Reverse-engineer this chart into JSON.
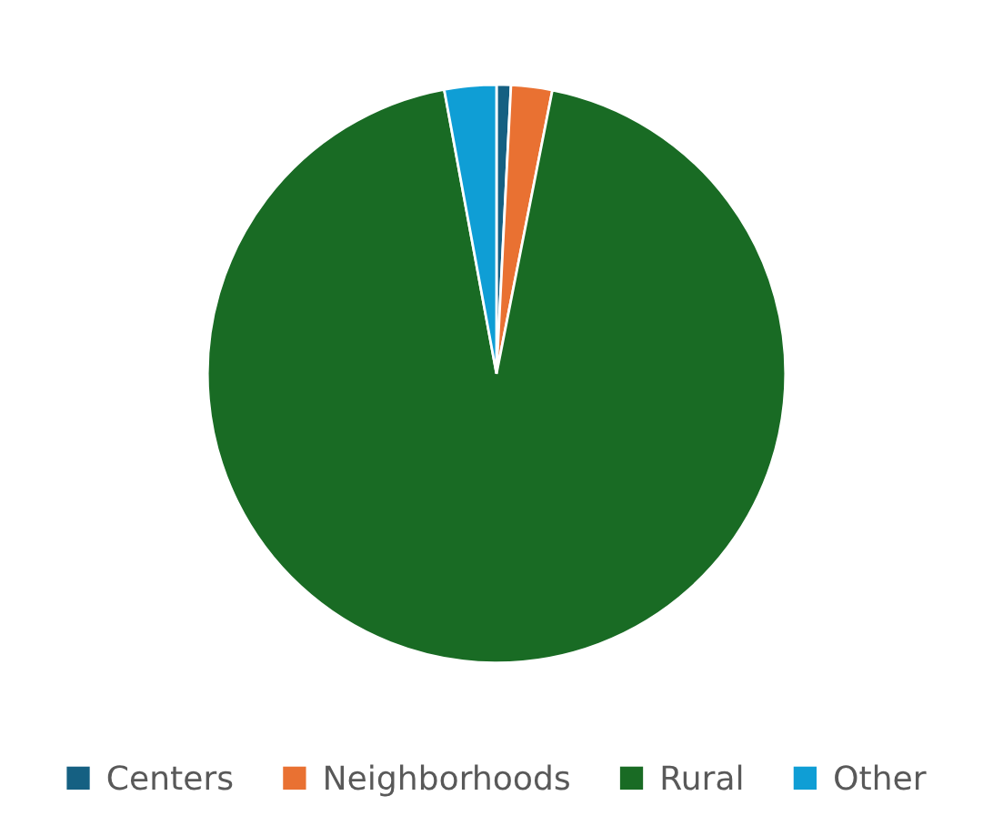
{
  "chart_data": {
    "type": "pie",
    "categories": [
      "Centers",
      "Neighborhoods",
      "Rural",
      "Other"
    ],
    "values": [
      0.8,
      2.3,
      94.0,
      2.9
    ],
    "colors": [
      "#156082",
      "#e97132",
      "#196b24",
      "#0f9ed5"
    ],
    "legend": "bottom"
  }
}
